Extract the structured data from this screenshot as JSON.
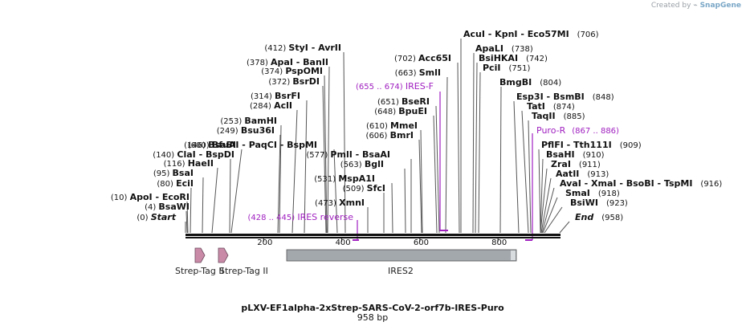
{
  "credit": {
    "created_by": "Created by",
    "brand": "SnapGene"
  },
  "title": "pLXV-EF1alpha-2xStrep-SARS-CoV-2-orf7b-IRES-Puro",
  "length_text": "958 bp",
  "ticks": [
    "200",
    "400",
    "600",
    "800"
  ],
  "sites": [
    {
      "text": "(0) ",
      "name": "Start",
      "style": "italic"
    },
    {
      "text": "(4) ",
      "name": "BsaWI"
    },
    {
      "text": "(10) ",
      "name": "ApoI  - EcoRI"
    },
    {
      "text": "(80) ",
      "name": "EciI"
    },
    {
      "text": "(95) ",
      "name": "BsaI"
    },
    {
      "text": "(116) ",
      "name": "HaeII"
    },
    {
      "text": "(140) ",
      "name": "ClaI  - BspDI"
    },
    {
      "text": "(146) ",
      "name": "BsaBI"
    },
    {
      "text": "(249) ",
      "name": "Bsu36I"
    },
    {
      "text": "(253) ",
      "name": "BamHI"
    },
    {
      "text": "(284) ",
      "name": "AclI"
    },
    {
      "text": "(314) ",
      "name": "BsrFI"
    },
    {
      "text": "(372) ",
      "name": "BsrDI"
    },
    {
      "text": "(374) ",
      "name": "PspOMI"
    },
    {
      "text": "(378) ",
      "name": "ApaI  - BanII"
    },
    {
      "text": "(412) ",
      "name": "StyI  - AvrII"
    },
    {
      "text": "(473) ",
      "name": "XmnI"
    },
    {
      "text": "(509) ",
      "name": "SfcI"
    },
    {
      "text": "(531) ",
      "name": "MspA1I"
    },
    {
      "text": "(563) ",
      "name": "BglI"
    },
    {
      "text": "(577) ",
      "name": "PmlI  - BsaAI"
    },
    {
      "text": "(600) ",
      "name": "BfuAI  - PaqCI  - BspMI"
    },
    {
      "text": "(606) ",
      "name": "BmrI"
    },
    {
      "text": "(610) ",
      "name": "MmeI"
    },
    {
      "text": "(648) ",
      "name": "BpuEI"
    },
    {
      "text": "(651) ",
      "name": "BseRI"
    },
    {
      "text": "(663) ",
      "name": "SmlI"
    },
    {
      "text": "(702) ",
      "name": "Acc65I"
    },
    {
      "text": "(706)",
      "name": "AcuI  - KpnI  - Eco57MI",
      "pos_after": true
    },
    {
      "text": "(738)",
      "name": "ApaLI",
      "pos_after": true
    },
    {
      "text": "(742)",
      "name": "BsiHKAI",
      "pos_after": true
    },
    {
      "text": "(751)",
      "name": "PciI",
      "pos_after": true
    },
    {
      "text": "(804)",
      "name": "BmgBI",
      "pos_after": true
    },
    {
      "text": "(848)",
      "name": "Esp3I  - BsmBI",
      "pos_after": true
    },
    {
      "text": "(874)",
      "name": "TatI",
      "pos_after": true
    },
    {
      "text": "(885)",
      "name": "TaqII",
      "pos_after": true
    },
    {
      "text": "(909)",
      "name": "PflFI  - Tth111I",
      "pos_after": true
    },
    {
      "text": "(910)",
      "name": "BsaHI",
      "pos_after": true
    },
    {
      "text": "(911)",
      "name": "ZraI",
      "pos_after": true
    },
    {
      "text": "(913)",
      "name": "AatII",
      "pos_after": true
    },
    {
      "text": "(916)",
      "name": "AvaI  - XmaI  - BsoBI  - TspMI",
      "pos_after": true
    },
    {
      "text": "(918)",
      "name": "SmaI",
      "pos_after": true
    },
    {
      "text": "(923)",
      "name": "BsiWI",
      "pos_after": true
    },
    {
      "text": "(958)",
      "name": "End",
      "pos_after": true,
      "style": "italic"
    }
  ],
  "primers": [
    {
      "range": "(428 .. 445) ",
      "name": "IRES reverse"
    },
    {
      "range": "(655 .. 674) ",
      "name": "IRES-F"
    },
    {
      "range": "(867 .. 886)",
      "name": "Puro-R",
      "pos_after": true
    }
  ],
  "features": [
    {
      "name": "Strep-Tag II"
    },
    {
      "name": "Strep-Tag II"
    },
    {
      "name": "IRES2"
    }
  ],
  "colors": {
    "primer": "#a020c0",
    "feature_arrow": "#c98aa8",
    "ires": "#a3a8ad",
    "backbone": "#111111"
  }
}
